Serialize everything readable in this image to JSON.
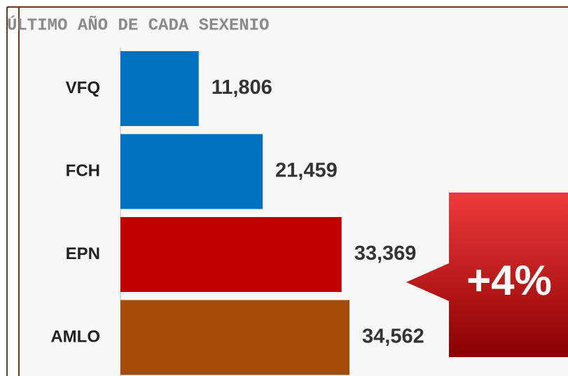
{
  "chart_data": {
    "type": "hbar",
    "title": "ÚLTIMO AÑO DE CADA SEXENIO",
    "categories": [
      "VFQ",
      "FCH",
      "EPN",
      "AMLO"
    ],
    "values": [
      11806,
      21459,
      33369,
      34562
    ],
    "value_labels": [
      "11,806",
      "21,459",
      "33,369",
      "34,562"
    ],
    "colors": [
      "#0070c0",
      "#0070c0",
      "#c00000",
      "#a54b08"
    ],
    "annotation": "+4%"
  }
}
